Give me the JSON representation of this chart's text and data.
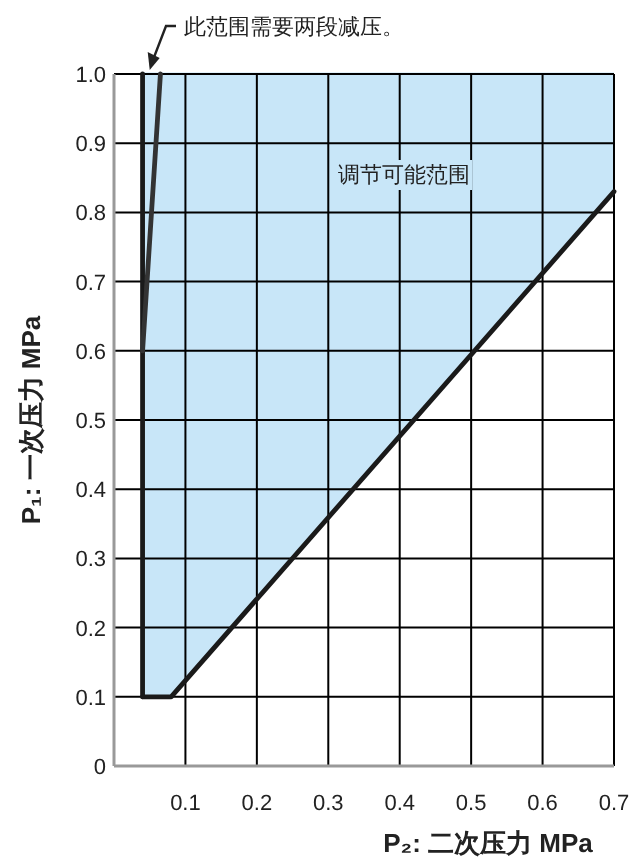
{
  "chart_data": {
    "type": "line",
    "xlabel": "P₂: 二次压力 MPa",
    "ylabel": "P₁: 一次压力 MPa",
    "annotations": [
      {
        "text": "此范围需要两段减压。",
        "x": 0.05,
        "y": 1.0
      },
      "调节可能范围"
    ],
    "xlim": [
      0,
      0.7
    ],
    "ylim": [
      0,
      1
    ],
    "xticks": [
      0.1,
      0.2,
      0.3,
      0.4,
      0.5,
      0.6,
      0.7
    ],
    "yticks": [
      0,
      0.1,
      0.2,
      0.3,
      0.4,
      0.5,
      0.6,
      0.7,
      0.8,
      0.9,
      {
        "value": 1,
        "label": "1.0"
      }
    ],
    "grid": true,
    "marker": "none",
    "line_style": "solid",
    "series": [
      {
        "type": "area",
        "color": "#c8e6f8",
        "x": [
          0.04,
          0.08,
          0.7
        ],
        "values": [
          1,
          1,
          1
        ]
      },
      {
        "color": "#1a1a1a",
        "x": [
          0.04,
          0.08,
          0.7
        ],
        "values": [
          0.1,
          0.1,
          0.83
        ]
      },
      {
        "color": "#1a1a1a",
        "x": [
          0.04,
          0.04
        ],
        "values": [
          0.1,
          1
        ]
      },
      {
        "color": "#333333",
        "x": [
          0.04,
          0.065
        ],
        "values": [
          0.6,
          1
        ]
      }
    ]
  }
}
